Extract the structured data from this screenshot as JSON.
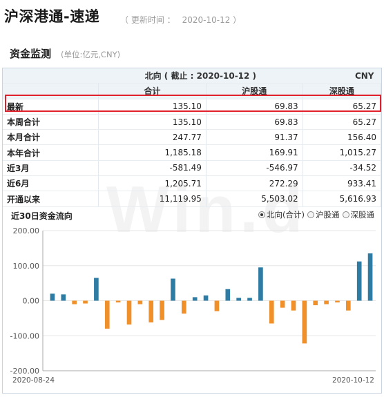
{
  "header": {
    "title": "沪深港通-速递",
    "update_label": "（ 更新时间 ：",
    "update_time": "2020-10-12 ）"
  },
  "section": {
    "title": "资金监测",
    "unit": "(单位:亿元,CNY)"
  },
  "table": {
    "direction_header": "北向 ( 截止 : 2020-10-12 )",
    "currency": "CNY",
    "columns": [
      "合计",
      "沪股通",
      "深股通"
    ],
    "rows": [
      {
        "label": "最新",
        "values": [
          "135.10",
          "69.83",
          "65.27"
        ]
      },
      {
        "label": "本周合计",
        "values": [
          "135.10",
          "69.83",
          "65.27"
        ]
      },
      {
        "label": "本月合计",
        "values": [
          "247.77",
          "91.37",
          "156.40"
        ]
      },
      {
        "label": "本年合计",
        "values": [
          "1,185.18",
          "169.91",
          "1,015.27"
        ]
      },
      {
        "label": "近3月",
        "values": [
          "-581.49",
          "-546.97",
          "-34.52"
        ]
      },
      {
        "label": "近6月",
        "values": [
          "1,205.71",
          "272.29",
          "933.41"
        ]
      },
      {
        "label": "开通以来",
        "values": [
          "11,119.95",
          "5,503.02",
          "5,616.93"
        ]
      }
    ]
  },
  "chart_section": {
    "title": "近30日资金流向",
    "radio_options": [
      {
        "label": "北向(合计)",
        "selected": true
      },
      {
        "label": "沪股通",
        "selected": false
      },
      {
        "label": "深股通",
        "selected": false
      }
    ],
    "watermark": "Win.d"
  },
  "colors": {
    "positive": "#2e7ca3",
    "negative": "#f0902a",
    "highlight_border": "#e0202a",
    "header_bg": "#eef3f8"
  },
  "chart_data": {
    "type": "bar",
    "title": "",
    "xlabel": "",
    "ylabel": "",
    "ylim": [
      -200,
      200
    ],
    "yticks": [
      "200.00",
      "100.00",
      "0.00",
      "-100.00",
      "-200.00"
    ],
    "x_start_label": "2020-08-24",
    "x_end_label": "2020-10-12",
    "series": [
      {
        "values": [
          20,
          18,
          -10,
          -8,
          65,
          -80,
          -5,
          -68,
          -10,
          -62,
          -55,
          63,
          -37,
          10,
          15,
          -30,
          33,
          8,
          8,
          95,
          -65,
          -20,
          -28,
          -122,
          -13,
          -10,
          -5,
          -28,
          112,
          135
        ]
      }
    ]
  }
}
